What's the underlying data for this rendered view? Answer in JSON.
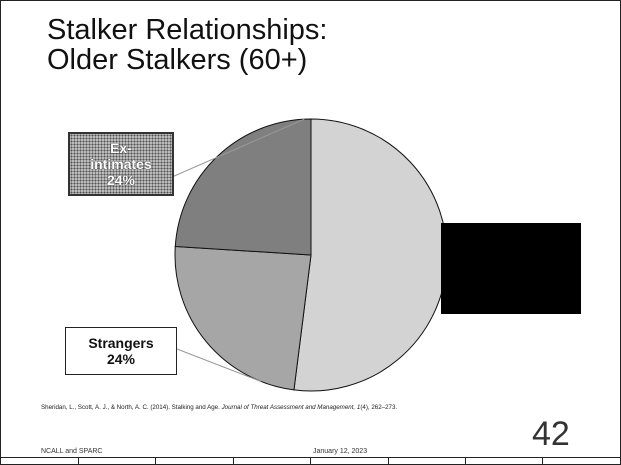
{
  "slide": {
    "title_line1": "Stalker Relationships:",
    "title_line2": "Older Stalkers (60+)",
    "footer_left": "NCALL and SPARC",
    "footer_date": "January 12, 2023",
    "page_number": "42"
  },
  "citation": {
    "authors": "Sheridan, L., Scott, A. J., & North, A. C. (2014). Stalking and Age. ",
    "journal": "Journal of Threat Assessment and Management, 1",
    "issue": "(4)",
    "pages": ", 262–273."
  },
  "chart_data": {
    "type": "pie",
    "title": "",
    "slices": [
      {
        "name": "",
        "value": 52,
        "label_name": "",
        "label_value": "",
        "color": "#d3d3d3"
      },
      {
        "name": "Strangers",
        "value": 24,
        "label_name": "Strangers",
        "label_value": "24%",
        "color": "#a6a6a6"
      },
      {
        "name": "Ex-intimates",
        "value": 24,
        "label_name": "Ex-intimates",
        "label_value": "24%",
        "color": "#7f7f7f"
      }
    ],
    "exint_label_lines": [
      "Ex-",
      "intimates",
      "24%"
    ],
    "strangers_label_lines": [
      "Strangers",
      "24%"
    ]
  }
}
